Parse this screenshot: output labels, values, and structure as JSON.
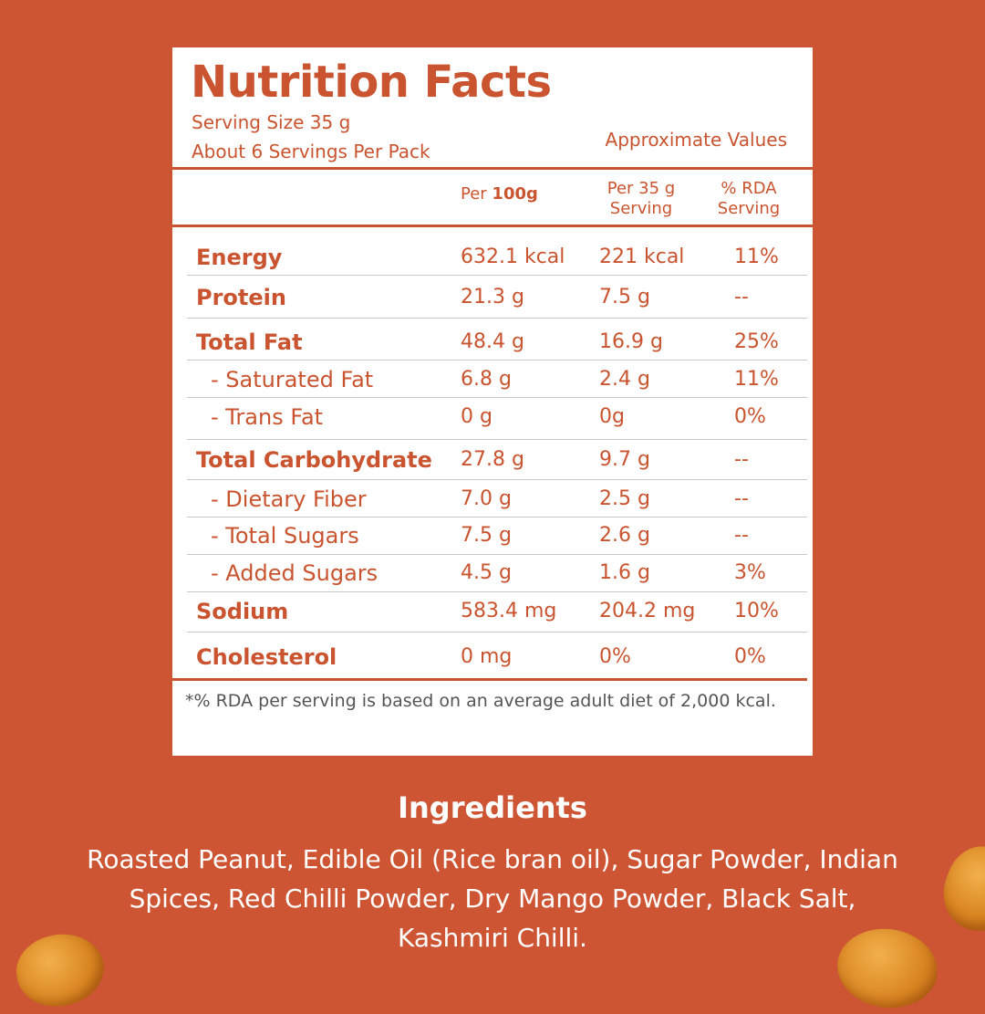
{
  "panel": {
    "title": "Nutrition Facts",
    "serving_size": "Serving Size 35 g",
    "servings_per_pack": "About 6 Servings Per Pack",
    "approximate": "Approximate Values",
    "col1_prefix": "Per ",
    "col1_bold": "100g",
    "col2_line1": "Per 35 g",
    "col2_line2": "Serving",
    "col3_line1": "% RDA",
    "col3_line2": "Serving",
    "rows": [
      {
        "name": "Energy",
        "per100": "632.1 kcal",
        "perServing": "221 kcal",
        "rda": "11%"
      },
      {
        "name": "Protein",
        "per100": "21.3 g",
        "perServing": "7.5 g",
        "rda": "--"
      },
      {
        "name": "Total Fat",
        "per100": "48.4 g",
        "perServing": "16.9 g",
        "rda": "25%"
      },
      {
        "name": "- Saturated Fat",
        "per100": "6.8 g",
        "perServing": "2.4 g",
        "rda": "11%"
      },
      {
        "name": "- Trans Fat",
        "per100": "0 g",
        "perServing": "0g",
        "rda": "0%"
      },
      {
        "name": "Total Carbohydrate",
        "per100": "27.8 g",
        "perServing": "9.7 g",
        "rda": "--"
      },
      {
        "name": "- Dietary Fiber",
        "per100": "7.0 g",
        "perServing": "2.5 g",
        "rda": "--"
      },
      {
        "name": "- Total Sugars",
        "per100": "7.5 g",
        "perServing": "2.6 g",
        "rda": "--"
      },
      {
        "name": "- Added Sugars",
        "per100": "4.5 g",
        "perServing": "1.6 g",
        "rda": "3%"
      },
      {
        "name": "Sodium",
        "per100": "583.4 mg",
        "perServing": "204.2 mg",
        "rda": "10%"
      },
      {
        "name": "Cholesterol",
        "per100": "0 mg",
        "perServing": "0%",
        "rda": "0%"
      }
    ],
    "footnote": "*% RDA per serving is based on an average adult diet of 2,000 kcal."
  },
  "ingredients": {
    "title": "Ingredients",
    "text": "Roasted Peanut, Edible Oil (Rice bran oil), Sugar Powder, Indian Spices, Red Chilli Powder, Dry Mango Powder, Black Salt, Kashmiri Chilli."
  },
  "colors": {
    "background": "#cd5533",
    "panel": "#ffffff",
    "accent": "#c9542f"
  }
}
